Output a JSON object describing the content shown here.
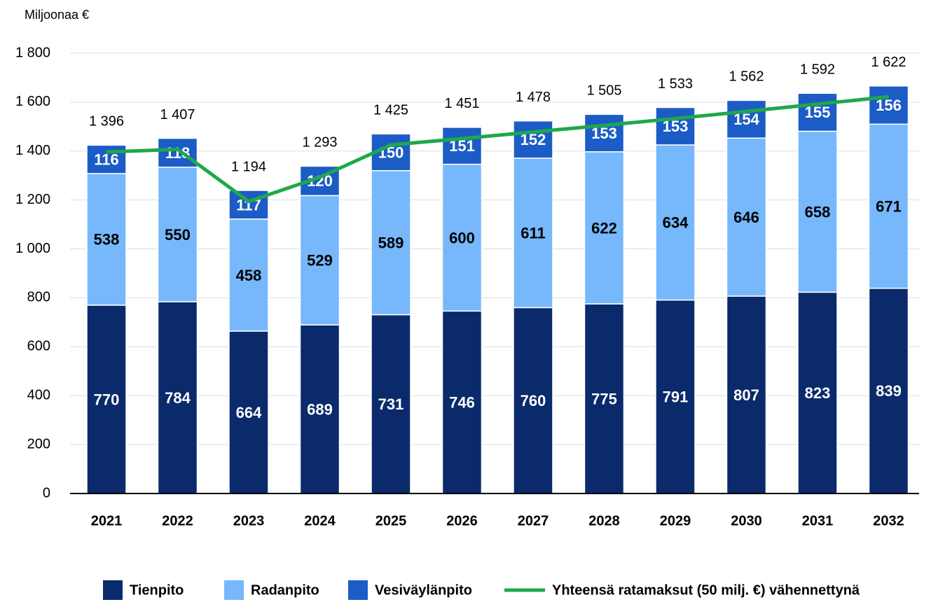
{
  "chart_data": {
    "type": "bar",
    "stacked": true,
    "y_label": "Miljoonaa €",
    "categories": [
      "2021",
      "2022",
      "2023",
      "2024",
      "2025",
      "2026",
      "2027",
      "2028",
      "2029",
      "2030",
      "2031",
      "2032"
    ],
    "series": [
      {
        "name": "Tienpito",
        "color": "#0b2a6b",
        "label_color": "#ffffff",
        "values": [
          770,
          784,
          664,
          689,
          731,
          746,
          760,
          775,
          791,
          807,
          823,
          839
        ]
      },
      {
        "name": "Radanpito",
        "color": "#76b8fb",
        "label_color": "#000000",
        "values": [
          538,
          550,
          458,
          529,
          589,
          600,
          611,
          622,
          634,
          646,
          658,
          671
        ]
      },
      {
        "name": "Vesiväylänpito",
        "color": "#1b5cc6",
        "label_color": "#ffffff",
        "values": [
          116,
          118,
          117,
          120,
          150,
          151,
          152,
          153,
          153,
          154,
          155,
          156
        ]
      },
      {
        "name": "Yhteensä ratamaksut (50 milj. €) vähennettynä",
        "type": "line",
        "color": "#1ea84b",
        "values": [
          1396,
          1407,
          1194,
          1293,
          1425,
          1451,
          1478,
          1505,
          1533,
          1562,
          1592,
          1622
        ],
        "value_labels": [
          "1 396",
          "1 407",
          "1 194",
          "1 293",
          "1 425",
          "1 451",
          "1 478",
          "1 505",
          "1 533",
          "1 562",
          "1 592",
          "1 622"
        ]
      }
    ],
    "ylim": [
      0,
      1800
    ],
    "yticks": [
      0,
      200,
      400,
      600,
      800,
      {
        "value": 1000,
        "label": "1 000"
      },
      {
        "value": 1200,
        "label": "1 200"
      },
      {
        "value": 1400,
        "label": "1 400"
      },
      {
        "value": 1600,
        "label": "1 600"
      },
      {
        "value": 1800,
        "label": "1 800"
      }
    ],
    "grid": true
  }
}
